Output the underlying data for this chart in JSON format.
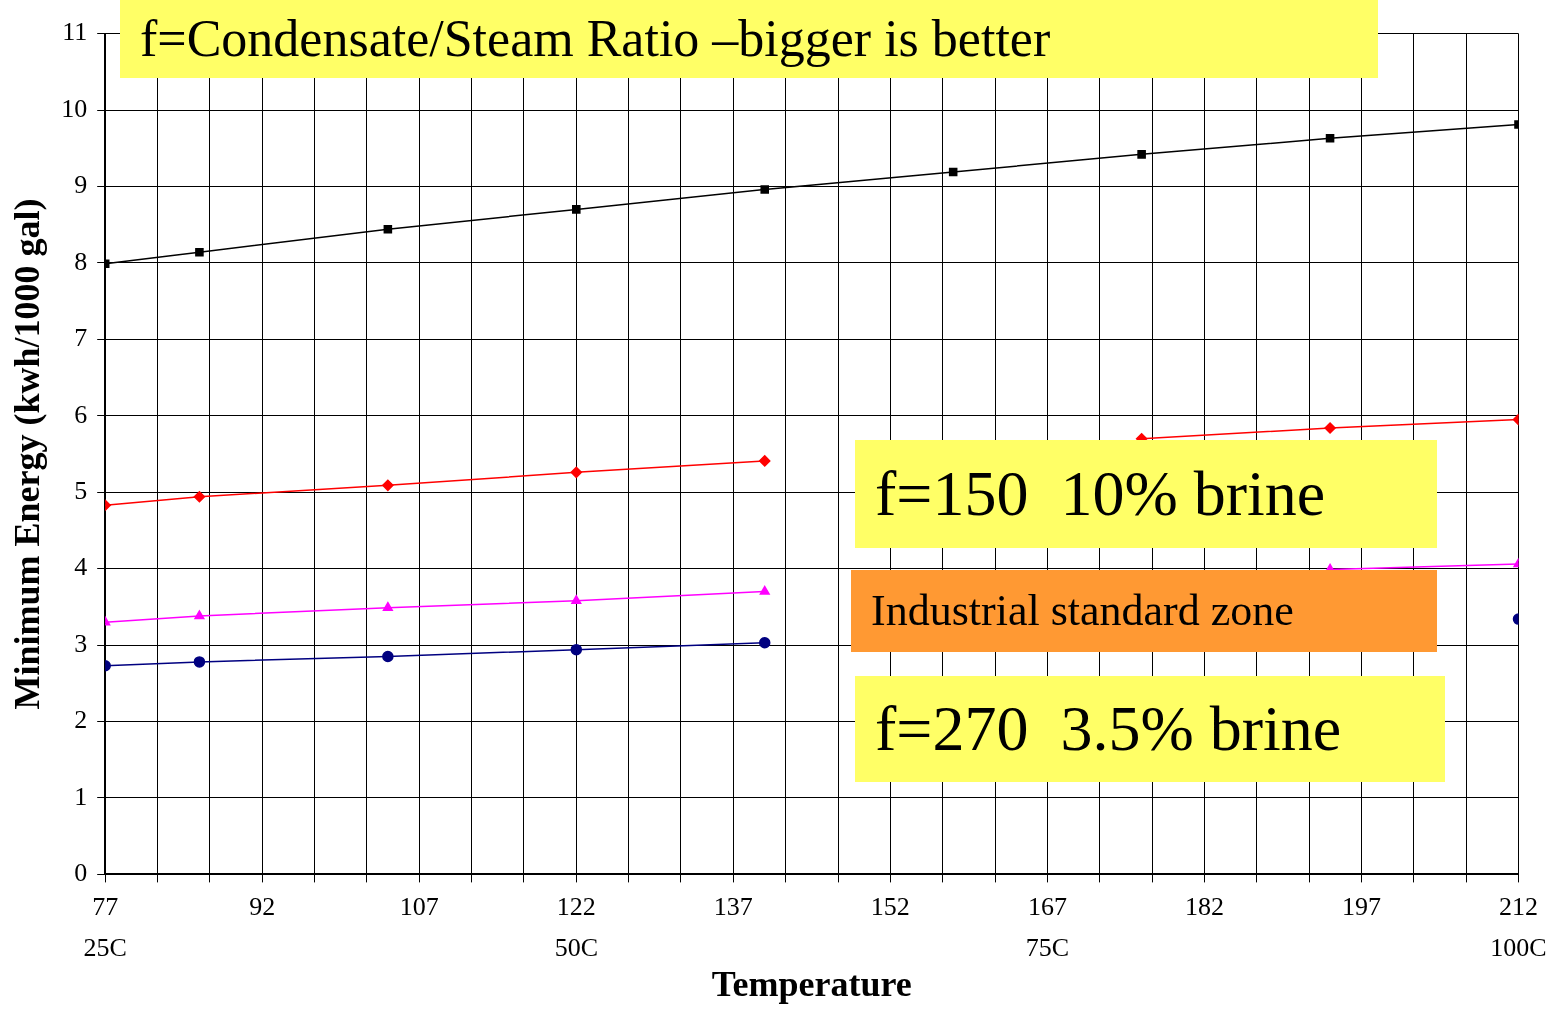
{
  "chart_data": {
    "type": "line",
    "title": "f=Condensate/Steam Ratio –bigger is better",
    "xlabel": "Temperature",
    "ylabel": "Minimum Energy (kwh/1000 gal)",
    "x": [
      77,
      86,
      104,
      122,
      140,
      158,
      176,
      194,
      212
    ],
    "series": [
      {
        "color": "#000000",
        "marker": "square",
        "values": [
          7.99,
          8.14,
          8.44,
          8.7,
          8.96,
          9.19,
          9.42,
          9.63,
          9.81
        ]
      },
      {
        "color": "#ff0000",
        "marker": "diamond",
        "values": [
          4.83,
          4.94,
          5.09,
          5.26,
          5.41,
          null,
          5.7,
          5.84,
          5.95
        ]
      },
      {
        "color": "#ff00ff",
        "marker": "triangle",
        "values": [
          3.3,
          3.38,
          3.49,
          3.58,
          3.7,
          null,
          null,
          3.99,
          4.06
        ]
      },
      {
        "color": "#000080",
        "marker": "circle",
        "values": [
          2.73,
          2.78,
          2.85,
          2.94,
          3.03,
          null,
          null,
          null,
          3.34
        ]
      }
    ],
    "xlim": [
      77,
      212
    ],
    "x2lim": [
      25,
      100
    ],
    "x2ticks": [
      {
        "value": 25,
        "label": "25C"
      },
      {
        "value": 50,
        "label": "50C"
      },
      {
        "value": 75,
        "label": "75C"
      },
      {
        "value": 100,
        "label": "100C"
      }
    ],
    "xticks": [
      77,
      {
        "value": 82,
        "label": null
      },
      {
        "value": 87,
        "label": null
      },
      92,
      {
        "value": 97,
        "label": null
      },
      {
        "value": 102,
        "label": null
      },
      107,
      {
        "value": 112,
        "label": null
      },
      {
        "value": 117,
        "label": null
      },
      122,
      {
        "value": 127,
        "label": null
      },
      {
        "value": 132,
        "label": null
      },
      137,
      {
        "value": 142,
        "label": null
      },
      {
        "value": 147,
        "label": null
      },
      152,
      {
        "value": 157,
        "label": null
      },
      {
        "value": 162,
        "label": null
      },
      167,
      {
        "value": 172,
        "label": null
      },
      {
        "value": 177,
        "label": null
      },
      182,
      {
        "value": 187,
        "label": null
      },
      {
        "value": 192,
        "label": null
      },
      197,
      {
        "value": 202,
        "label": null
      },
      {
        "value": 207,
        "label": null
      },
      212
    ],
    "ylim": [
      0,
      11
    ],
    "yticks": [
      0,
      1,
      2,
      3,
      4,
      5,
      6,
      7,
      8,
      9,
      10,
      11
    ],
    "grid": true,
    "legend": false,
    "line_style": "solid",
    "annotations": [
      "f=150  10% brine",
      "Industrial standard zone",
      "f=270  3.5% brine"
    ]
  }
}
